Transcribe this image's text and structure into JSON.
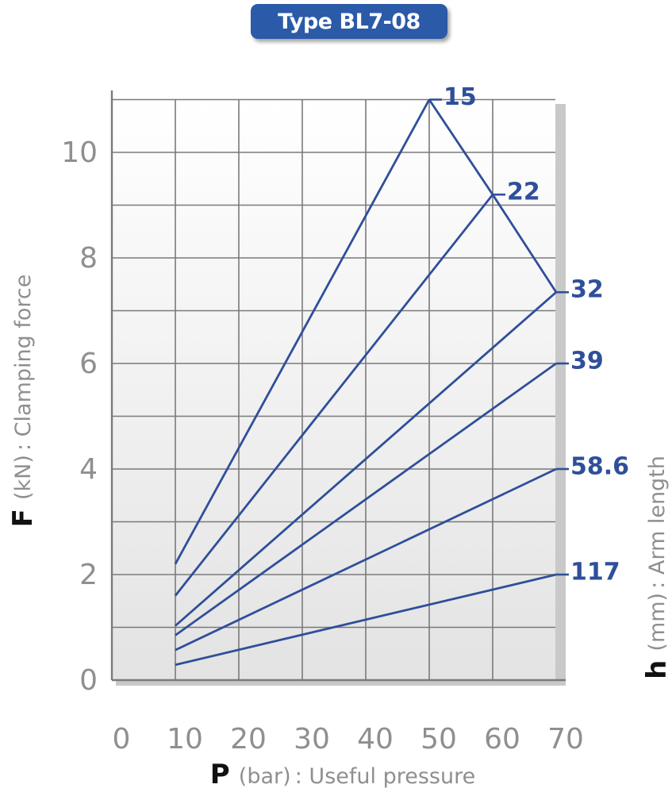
{
  "badge": {
    "label": "Type BL7-08"
  },
  "chart_data": {
    "type": "line",
    "title": "Type BL7-08",
    "x_axis": {
      "symbol": "P",
      "unit": "(bar)",
      "description": " : Useful pressure",
      "range": [
        0,
        70
      ],
      "ticks": [
        0,
        10,
        20,
        30,
        40,
        50,
        60,
        70
      ]
    },
    "y_axis": {
      "symbol": "F",
      "unit": "(kN)",
      "description": " : Clamping force",
      "range": [
        0,
        11
      ],
      "ticks": [
        0,
        2,
        4,
        6,
        8,
        10
      ]
    },
    "secondary_axis": {
      "symbol": "h",
      "unit": "(mm)",
      "description": " : Arm length"
    },
    "grid": true,
    "series": [
      {
        "name": "15",
        "points": [
          [
            10,
            2.2
          ],
          [
            50,
            11.0
          ]
        ]
      },
      {
        "name": "22",
        "points": [
          [
            10,
            1.6
          ],
          [
            60,
            9.2
          ]
        ]
      },
      {
        "name": "32",
        "points": [
          [
            10,
            1.03
          ],
          [
            70,
            7.35
          ]
        ]
      },
      {
        "name": "39",
        "points": [
          [
            10,
            0.85
          ],
          [
            70,
            6.0
          ]
        ]
      },
      {
        "name": "58.6",
        "points": [
          [
            10,
            0.57
          ],
          [
            70,
            4.0
          ]
        ]
      },
      {
        "name": "117",
        "points": [
          [
            10,
            0.29
          ],
          [
            70,
            2.0
          ]
        ]
      }
    ],
    "limit_line": {
      "points": [
        [
          50,
          11.0
        ],
        [
          60,
          9.2
        ],
        [
          70,
          7.35
        ]
      ]
    },
    "colors": {
      "line": "#2f4f9a",
      "grid": "#7a7a7a",
      "frame": "#7a7a7a",
      "tick": "#8f8f8f",
      "badge": "#2b5aa8"
    }
  }
}
